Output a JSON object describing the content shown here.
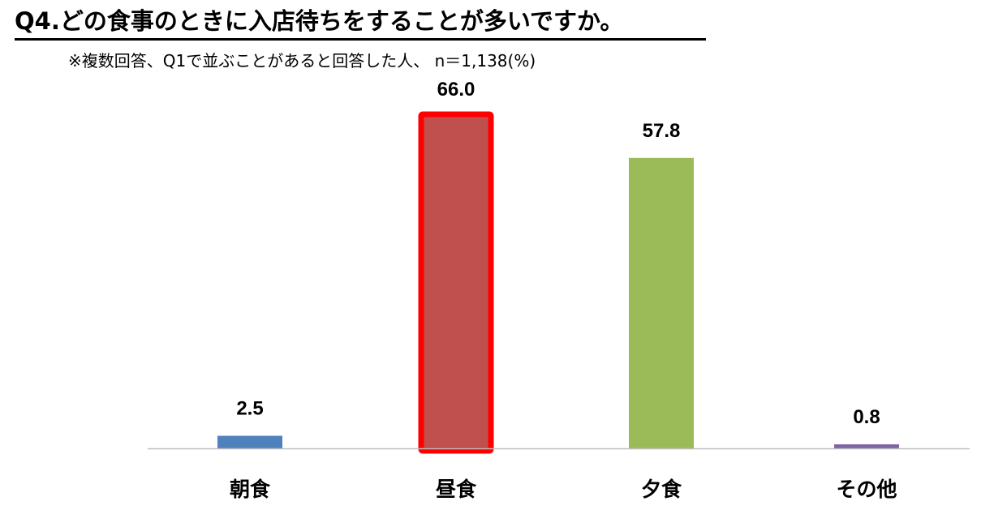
{
  "title": "Q4.どの食事のときに入店待ちをすることが多いですか。",
  "subtitle": "※複数回答、Q1で並ぶことがあると回答した人、 n＝1,138(%)",
  "chart_data": {
    "type": "bar",
    "categories": [
      "朝食",
      "昼食",
      "夕食",
      "その他"
    ],
    "values": [
      2.5,
      66.0,
      57.8,
      0.8
    ],
    "value_labels": [
      "2.5",
      "66.0",
      "57.8",
      "0.8"
    ],
    "colors": [
      "#4F81BD",
      "#C0504D",
      "#9BBB59",
      "#8064A2"
    ],
    "highlight": {
      "category": "昼食",
      "border_color": "#FF0000"
    },
    "ylim": [
      0,
      66.0
    ],
    "grid": false,
    "legend": "none",
    "xlabel": "",
    "ylabel": ""
  }
}
